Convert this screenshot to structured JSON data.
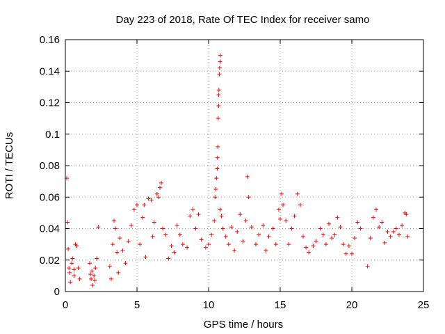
{
  "chart_data": {
    "type": "scatter",
    "title": "Day 223 of 2018, Rate Of TEC Index for receiver samo",
    "xlabel": "GPS time / hours",
    "ylabel": "ROTI / TECUs",
    "xlim": [
      0,
      25
    ],
    "ylim": [
      0,
      0.16
    ],
    "xticks": [
      0,
      5,
      10,
      15,
      20,
      25
    ],
    "xtick_labels": [
      "0",
      "5",
      "10",
      "15",
      "20",
      "25"
    ],
    "yticks": [
      0,
      0.02,
      0.04,
      0.06,
      0.08,
      0.1,
      0.12,
      0.14,
      0.16
    ],
    "ytick_labels": [
      "0",
      "0.02",
      "0.04",
      "0.06",
      "0.08",
      "0.1",
      "0.12",
      "0.14",
      "0.16"
    ],
    "grid": true,
    "marker": "+",
    "marker_color": "#ff0000",
    "series": [
      {
        "points": [
          [
            0.1,
            0.072
          ],
          [
            0.15,
            0.044
          ],
          [
            0.2,
            0.027
          ],
          [
            0.3,
            0.012
          ],
          [
            0.45,
            0.018
          ],
          [
            0.5,
            0.021
          ],
          [
            0.6,
            0.01
          ],
          [
            0.7,
            0.03
          ],
          [
            0.8,
            0.029
          ],
          [
            0.9,
            0.015
          ],
          [
            1.0,
            0.008
          ],
          [
            0.35,
            0.006
          ],
          [
            0.6,
            0.014
          ],
          [
            0.25,
            0.015
          ],
          [
            1.7,
            0.018
          ],
          [
            1.8,
            0.008
          ],
          [
            1.85,
            0.013
          ],
          [
            1.9,
            0.004
          ],
          [
            2.0,
            0.01
          ],
          [
            2.1,
            0.015
          ],
          [
            2.2,
            0.021
          ],
          [
            2.3,
            0.041
          ],
          [
            1.75,
            0.011
          ],
          [
            2.05,
            0.007
          ],
          [
            3.1,
            0.016
          ],
          [
            3.2,
            0.008
          ],
          [
            3.3,
            0.03
          ],
          [
            3.4,
            0.045
          ],
          [
            3.5,
            0.04
          ],
          [
            3.6,
            0.025
          ],
          [
            3.7,
            0.012
          ],
          [
            3.8,
            0.034
          ],
          [
            4.0,
            0.026
          ],
          [
            4.2,
            0.018
          ],
          [
            4.4,
            0.032
          ],
          [
            4.6,
            0.042
          ],
          [
            4.8,
            0.052
          ],
          [
            5.0,
            0.055
          ],
          [
            5.2,
            0.03
          ],
          [
            5.4,
            0.047
          ],
          [
            5.5,
            0.055
          ],
          [
            5.6,
            0.022
          ],
          [
            5.8,
            0.059
          ],
          [
            6.0,
            0.058
          ],
          [
            6.1,
            0.035
          ],
          [
            6.2,
            0.044
          ],
          [
            6.4,
            0.062
          ],
          [
            6.5,
            0.06
          ],
          [
            6.6,
            0.066
          ],
          [
            6.7,
            0.069
          ],
          [
            6.8,
            0.04
          ],
          [
            7.0,
            0.036
          ],
          [
            7.2,
            0.021
          ],
          [
            7.4,
            0.029
          ],
          [
            7.6,
            0.025
          ],
          [
            7.8,
            0.042
          ],
          [
            8.0,
            0.036
          ],
          [
            8.2,
            0.03
          ],
          [
            8.5,
            0.028
          ],
          [
            8.7,
            0.048
          ],
          [
            8.9,
            0.052
          ],
          [
            9.1,
            0.04
          ],
          [
            9.3,
            0.049
          ],
          [
            9.5,
            0.033
          ],
          [
            9.8,
            0.028
          ],
          [
            10.0,
            0.03
          ],
          [
            10.2,
            0.036
          ],
          [
            10.4,
            0.045
          ],
          [
            10.45,
            0.06
          ],
          [
            10.5,
            0.065
          ],
          [
            10.55,
            0.072
          ],
          [
            10.6,
            0.078
          ],
          [
            10.62,
            0.085
          ],
          [
            10.65,
            0.092
          ],
          [
            10.67,
            0.11
          ],
          [
            10.7,
            0.125
          ],
          [
            10.72,
            0.128
          ],
          [
            10.75,
            0.138
          ],
          [
            10.77,
            0.142
          ],
          [
            10.8,
            0.146
          ],
          [
            10.82,
            0.15
          ],
          [
            10.7,
            0.118
          ],
          [
            10.8,
            0.052
          ],
          [
            10.9,
            0.048
          ],
          [
            11.0,
            0.04
          ],
          [
            11.2,
            0.035
          ],
          [
            11.4,
            0.03
          ],
          [
            11.6,
            0.041
          ],
          [
            11.8,
            0.026
          ],
          [
            12.0,
            0.038
          ],
          [
            12.2,
            0.049
          ],
          [
            12.4,
            0.032
          ],
          [
            12.6,
            0.045
          ],
          [
            12.7,
            0.073
          ],
          [
            12.8,
            0.06
          ],
          [
            13.0,
            0.041
          ],
          [
            13.3,
            0.03
          ],
          [
            13.5,
            0.036
          ],
          [
            13.8,
            0.042
          ],
          [
            14.0,
            0.026
          ],
          [
            14.2,
            0.035
          ],
          [
            14.5,
            0.04
          ],
          [
            14.7,
            0.03
          ],
          [
            14.9,
            0.052
          ],
          [
            15.0,
            0.046
          ],
          [
            15.1,
            0.062
          ],
          [
            15.2,
            0.055
          ],
          [
            15.4,
            0.045
          ],
          [
            15.6,
            0.03
          ],
          [
            15.8,
            0.04
          ],
          [
            16.0,
            0.048
          ],
          [
            16.2,
            0.062
          ],
          [
            16.4,
            0.055
          ],
          [
            16.6,
            0.035
          ],
          [
            16.8,
            0.028
          ],
          [
            17.0,
            0.025
          ],
          [
            17.3,
            0.029
          ],
          [
            17.5,
            0.032
          ],
          [
            17.8,
            0.04
          ],
          [
            18.0,
            0.036
          ],
          [
            18.2,
            0.03
          ],
          [
            18.4,
            0.043
          ],
          [
            18.6,
            0.034
          ],
          [
            18.8,
            0.036
          ],
          [
            19.0,
            0.047
          ],
          [
            19.2,
            0.041
          ],
          [
            19.4,
            0.03
          ],
          [
            19.6,
            0.024
          ],
          [
            19.8,
            0.029
          ],
          [
            20.0,
            0.024
          ],
          [
            20.2,
            0.034
          ],
          [
            20.4,
            0.044
          ],
          [
            20.6,
            0.04
          ],
          [
            21.1,
            0.016
          ],
          [
            21.3,
            0.034
          ],
          [
            21.5,
            0.047
          ],
          [
            21.7,
            0.052
          ],
          [
            21.9,
            0.041
          ],
          [
            22.1,
            0.044
          ],
          [
            22.3,
            0.031
          ],
          [
            22.5,
            0.038
          ],
          [
            22.7,
            0.035
          ],
          [
            22.9,
            0.038
          ],
          [
            23.1,
            0.04
          ],
          [
            23.3,
            0.036
          ],
          [
            23.5,
            0.042
          ],
          [
            23.7,
            0.05
          ],
          [
            23.8,
            0.049
          ],
          [
            23.9,
            0.035
          ]
        ]
      }
    ]
  }
}
